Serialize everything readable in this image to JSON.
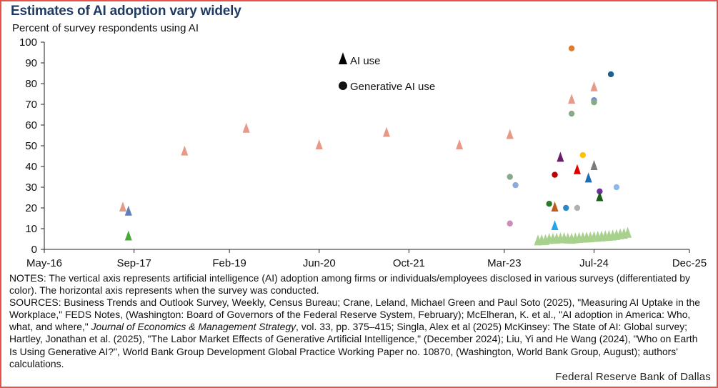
{
  "chart_data": {
    "type": "scatter",
    "title": "Estimates of AI adoption vary widely",
    "ylabel": "Percent of survey respondents using AI",
    "ylim": [
      0,
      100
    ],
    "yticks": [
      "0",
      "10",
      "20",
      "30",
      "40",
      "50",
      "60",
      "70",
      "80",
      "90",
      "100"
    ],
    "xlim": [
      "2016-05",
      "2025-12"
    ],
    "xticks": [
      "May-16",
      "Sep-17",
      "Feb-19",
      "Jun-20",
      "Oct-21",
      "Mar-23",
      "Jul-24",
      "Dec-25"
    ],
    "legend": {
      "position": "top-center",
      "entries": [
        "AI use",
        "Generative AI use"
      ]
    },
    "grid": false,
    "points": [
      {
        "x": "2017-07",
        "y": 20,
        "marker": "triangle",
        "color": "#e89a88"
      },
      {
        "x": "2017-08",
        "y": 18,
        "marker": "triangle",
        "color": "#5f7fb8"
      },
      {
        "x": "2017-08",
        "y": 6,
        "marker": "triangle",
        "color": "#4aa83a"
      },
      {
        "x": "2018-06",
        "y": 47,
        "marker": "triangle",
        "color": "#e89a88"
      },
      {
        "x": "2019-05",
        "y": 58,
        "marker": "triangle",
        "color": "#e89a88"
      },
      {
        "x": "2020-06",
        "y": 50,
        "marker": "triangle",
        "color": "#e89a88"
      },
      {
        "x": "2021-06",
        "y": 56,
        "marker": "triangle",
        "color": "#e89a88"
      },
      {
        "x": "2022-07",
        "y": 50,
        "marker": "triangle",
        "color": "#e89a88"
      },
      {
        "x": "2023-04",
        "y": 55,
        "marker": "triangle",
        "color": "#e89a88"
      },
      {
        "x": "2023-04",
        "y": 35,
        "marker": "circle",
        "color": "#8aa88a"
      },
      {
        "x": "2023-05",
        "y": 31,
        "marker": "circle",
        "color": "#8eaadb"
      },
      {
        "x": "2023-04",
        "y": 12.5,
        "marker": "circle",
        "color": "#c98fba"
      },
      {
        "x": "2023-11",
        "y": 22,
        "marker": "circle",
        "color": "#2a7a2a"
      },
      {
        "x": "2023-12",
        "y": 36,
        "marker": "circle",
        "color": "#c00000"
      },
      {
        "x": "2023-12",
        "y": 20,
        "marker": "triangle",
        "color": "#c05a1c"
      },
      {
        "x": "2023-12",
        "y": 11,
        "marker": "triangle",
        "color": "#1fa7e8"
      },
      {
        "x": "2024-01",
        "y": 44,
        "marker": "triangle",
        "color": "#6a1b6a"
      },
      {
        "x": "2024-02",
        "y": 20,
        "marker": "circle",
        "color": "#2b88c8"
      },
      {
        "x": "2024-03",
        "y": 97,
        "marker": "circle",
        "color": "#e07a2c"
      },
      {
        "x": "2024-03",
        "y": 72,
        "marker": "triangle",
        "color": "#e89a88"
      },
      {
        "x": "2024-03",
        "y": 65.5,
        "marker": "circle",
        "color": "#8aa88a"
      },
      {
        "x": "2024-04",
        "y": 38,
        "marker": "triangle",
        "color": "#e00000"
      },
      {
        "x": "2024-04",
        "y": 20,
        "marker": "circle",
        "color": "#b0b0b0"
      },
      {
        "x": "2024-05",
        "y": 45.5,
        "marker": "circle",
        "color": "#ffc000"
      },
      {
        "x": "2024-06",
        "y": 34,
        "marker": "triangle",
        "color": "#1f6fb0"
      },
      {
        "x": "2024-07",
        "y": 78,
        "marker": "triangle",
        "color": "#e89a88"
      },
      {
        "x": "2024-07",
        "y": 72,
        "marker": "circle",
        "color": "#6f8fc8"
      },
      {
        "x": "2024-07",
        "y": 71,
        "marker": "circle",
        "color": "#8aa88a"
      },
      {
        "x": "2024-07",
        "y": 40,
        "marker": "triangle",
        "color": "#7a7a7a"
      },
      {
        "x": "2024-08",
        "y": 28,
        "marker": "circle",
        "color": "#7030a0"
      },
      {
        "x": "2024-08",
        "y": 25,
        "marker": "triangle",
        "color": "#1a5e1a"
      },
      {
        "x": "2024-10",
        "y": 84.5,
        "marker": "circle",
        "color": "#1f5f8b"
      },
      {
        "x": "2024-11",
        "y": 30,
        "marker": "circle",
        "color": "#8eb8e8"
      }
    ],
    "weekly_series": {
      "marker": "triangle",
      "color": "#a9d18e",
      "x_start": "2023-09",
      "x_end": "2025-01",
      "values": [
        3.8,
        3.9,
        4.0,
        4.5,
        4.6,
        4.7,
        4.8,
        4.9,
        4.7,
        4.6,
        4.8,
        5.0,
        5.1,
        5.2,
        5.3,
        5.5,
        5.6,
        5.7,
        5.9,
        6.0,
        6.2,
        6.4,
        6.8,
        7.0,
        7.5
      ]
    }
  },
  "notes": "NOTES: The vertical axis represents artificial intelligence (AI) adoption among firms or individuals/employees disclosed in various surveys (differentiated by color). The horizontal axis represents when the survey was conducted.",
  "sources_part1": "SOURCES: Business Trends and Outlook Survey, Weekly, Census Bureau; Crane, Leland, Michael Green and Paul Soto (2025), \"Measuring AI Uptake in the Workplace,\" FEDS Notes, (Washington: Board of Governors of the Federal Reserve System, February); McElheran, K. et al., \"AI adoption in America: Who, what, and where,\" ",
  "sources_journal": "Journal of Economics & Management Strategy",
  "sources_part2": ", vol. 33, pp. 375–415; Singla, Alex et al (2025) McKinsey: The State of AI: Global survey; Hartley, Jonathan et al. (2025), \"The Labor Market Effects of Generative Artificial Intelligence,\" (December 2024); Liu, Yi and He Wang (2024), \"Who on Earth Is Using Generative AI?\", World Bank Group Development Global Practice Working Paper no. 10870, (Washington, World Bank Group, August); authors' calculations.",
  "source_credit": "Federal Reserve Bank of Dallas",
  "colors": {
    "frame": "#e8504a",
    "title": "#1f3b64"
  }
}
